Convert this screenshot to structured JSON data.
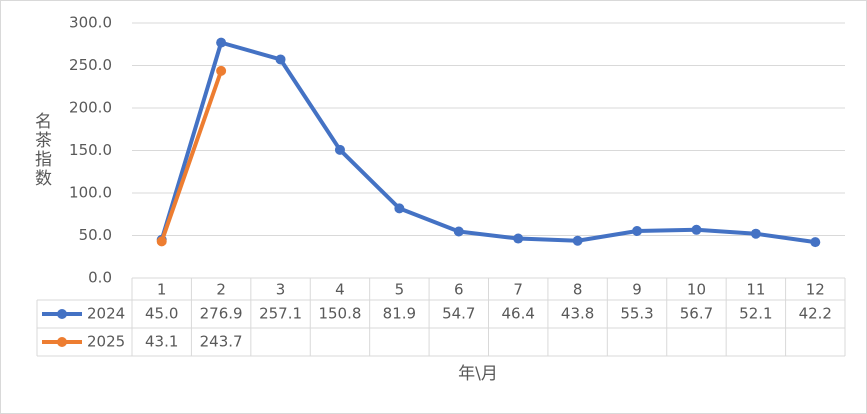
{
  "chart_data": {
    "type": "line",
    "ylabel": "名茶指数",
    "xlabel": "年\\月",
    "categories": [
      "1",
      "2",
      "3",
      "4",
      "5",
      "6",
      "7",
      "8",
      "9",
      "10",
      "11",
      "12"
    ],
    "series": [
      {
        "name": "2024",
        "color": "#4472c4",
        "values": [
          45.0,
          276.9,
          257.1,
          150.8,
          81.9,
          54.7,
          46.4,
          43.8,
          55.3,
          56.7,
          52.1,
          42.2
        ],
        "value_labels": [
          "45.0",
          "276.9",
          "257.1",
          "150.8",
          "81.9",
          "54.7",
          "46.4",
          "43.8",
          "55.3",
          "56.7",
          "52.1",
          "42.2"
        ]
      },
      {
        "name": "2025",
        "color": "#ed7d31",
        "values": [
          43.1,
          243.7,
          null,
          null,
          null,
          null,
          null,
          null,
          null,
          null,
          null,
          null
        ],
        "value_labels": [
          "43.1",
          "243.7",
          null,
          null,
          null,
          null,
          null,
          null,
          null,
          null,
          null,
          null
        ]
      }
    ],
    "ylim": [
      0,
      300
    ],
    "yticks": [
      {
        "value": 0,
        "label": "0.0"
      },
      {
        "value": 50,
        "label": "50.0"
      },
      {
        "value": 100,
        "label": "100.0"
      },
      {
        "value": 150,
        "label": "150.0"
      },
      {
        "value": 200,
        "label": "200.0"
      },
      {
        "value": 250,
        "label": "250.0"
      },
      {
        "value": 300,
        "label": "300.0"
      }
    ],
    "grid": true,
    "data_table": true
  }
}
